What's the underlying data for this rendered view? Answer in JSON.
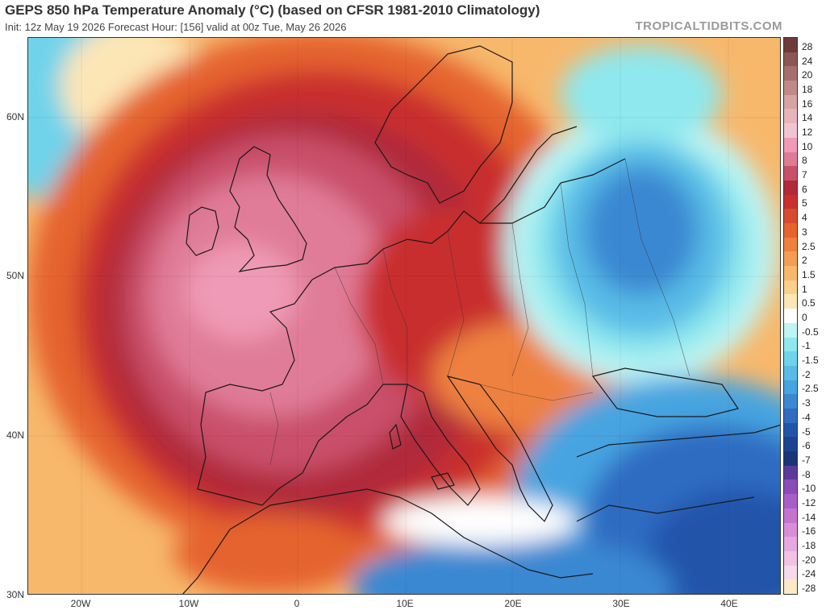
{
  "header": {
    "title": "GEPS 850 hPa Temperature Anomaly (°C) (based on CFSR 1981-2010 Climatology)",
    "subtitle": "Init: 12z May 19 2026   Forecast Hour: [156]   valid at 00z Tue, May 26 2026",
    "brand": "TROPICALTIDBITS.COM"
  },
  "map": {
    "lat_labels": [
      "60N",
      "50N",
      "40N",
      "30N"
    ],
    "lon_labels": [
      "20W",
      "10W",
      "0",
      "10E",
      "20E",
      "30E",
      "40E"
    ],
    "lat_range": [
      30,
      65
    ],
    "lon_range": [
      -25,
      45
    ]
  },
  "colorbar": {
    "labels": [
      "28",
      "24",
      "20",
      "18",
      "16",
      "14",
      "12",
      "10",
      "8",
      "7",
      "6",
      "5",
      "4",
      "3",
      "2.5",
      "2",
      "1.5",
      "1",
      "0.5",
      "0",
      "-0.5",
      "-1",
      "-1.5",
      "-2",
      "-2.5",
      "-3",
      "-4",
      "-5",
      "-6",
      "-7",
      "-8",
      "-10",
      "-12",
      "-14",
      "-16",
      "-18",
      "-20",
      "-24",
      "-28"
    ],
    "colors": [
      "#6e3a3a",
      "#8c5656",
      "#a66f6f",
      "#c08a8a",
      "#d7a4a4",
      "#e7b4bb",
      "#f2c4d2",
      "#ef9ab6",
      "#e07b97",
      "#c9506a",
      "#b02a3a",
      "#c92f2f",
      "#d84a2e",
      "#e5642f",
      "#ee8140",
      "#f49e55",
      "#f7b86c",
      "#fad08c",
      "#fde6b6",
      "#ffffff",
      "#bff4f4",
      "#8ee8ee",
      "#6fd3ea",
      "#58bce6",
      "#46a4e0",
      "#3a88d2",
      "#2f6cc2",
      "#2454aa",
      "#1d4390",
      "#1b3478",
      "#5a3a9a",
      "#8a4cb8",
      "#a85ec8",
      "#c474cf",
      "#d98fd6",
      "#e6a9dd",
      "#f0c3e3",
      "#f6d9ea",
      "#fbe9c8"
    ]
  }
}
